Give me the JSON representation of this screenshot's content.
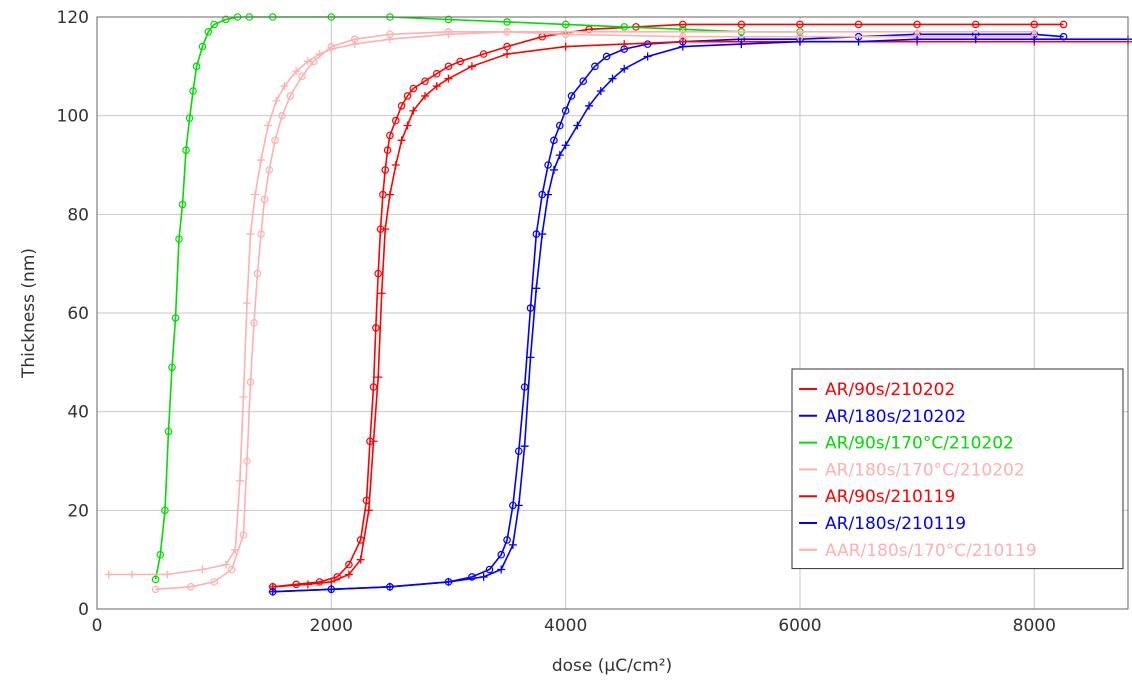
{
  "chart_data": {
    "type": "line",
    "title": "",
    "xlabel": "dose (µC/cm²)",
    "ylabel": "Thickness (nm)",
    "xlim": [
      0,
      8800
    ],
    "ylim": [
      0,
      120
    ],
    "xticks": [
      0,
      2000,
      4000,
      6000,
      8000
    ],
    "yticks": [
      0,
      20,
      40,
      60,
      80,
      100,
      120
    ],
    "grid": true,
    "legend_position": "bottom-right",
    "series": [
      {
        "name": "AR/90s/210202",
        "color": "#ff0000",
        "marker": "circle",
        "x": [
          1500,
          1700,
          1900,
          2050,
          2150,
          2250,
          2300,
          2330,
          2360,
          2380,
          2400,
          2420,
          2440,
          2460,
          2480,
          2500,
          2550,
          2600,
          2650,
          2700,
          2800,
          2900,
          3000,
          3100,
          3300,
          3500,
          3800,
          4200,
          4600,
          5000,
          5500,
          6000,
          6500,
          7000,
          7500,
          8000,
          8250
        ],
        "y": [
          4.5,
          5,
          5.5,
          6.5,
          9,
          14,
          22,
          34,
          45,
          57,
          68,
          77,
          84,
          89,
          93,
          96,
          99,
          102,
          104,
          105.5,
          107,
          108.5,
          110,
          111,
          112.5,
          114,
          116,
          117.5,
          118,
          118.5,
          118.5,
          118.5,
          118.5,
          118.5,
          118.5,
          118.5,
          118.5
        ]
      },
      {
        "name": "AR/180s/210202",
        "color": "#0000ff",
        "marker": "circle",
        "x": [
          1500,
          2000,
          2500,
          3000,
          3200,
          3350,
          3450,
          3500,
          3550,
          3600,
          3650,
          3700,
          3750,
          3800,
          3850,
          3900,
          3950,
          4000,
          4050,
          4150,
          4250,
          4350,
          4500,
          4700,
          5000,
          5500,
          6000,
          6500,
          7000,
          7500,
          8000,
          8250
        ],
        "y": [
          3.5,
          4,
          4.5,
          5.5,
          6.5,
          8,
          11,
          14,
          21,
          32,
          45,
          61,
          76,
          84,
          90,
          95,
          98,
          101,
          104,
          107,
          110,
          112,
          113.5,
          114.5,
          115,
          115.5,
          115.5,
          116,
          116.5,
          116.5,
          116.5,
          116
        ]
      },
      {
        "name": "AR/90s/170°C/210202",
        "color": "#00dd00",
        "marker": "circle",
        "x": [
          500,
          540,
          580,
          610,
          640,
          670,
          700,
          730,
          760,
          790,
          820,
          850,
          900,
          950,
          1000,
          1100,
          1200,
          1300,
          1500,
          2000,
          2500,
          3000,
          3500,
          4000,
          4500,
          5000,
          5500,
          6000
        ],
        "y": [
          6,
          11,
          20,
          36,
          49,
          59,
          75,
          82,
          93,
          99.5,
          105,
          110,
          114,
          117,
          118.5,
          119.5,
          120,
          120,
          120,
          120,
          120,
          119.5,
          119,
          118.5,
          118,
          117.5,
          117,
          117
        ]
      },
      {
        "name": "AR/180s/170°C/210202",
        "color": "#ffb0b0",
        "marker": "circle",
        "x": [
          500,
          800,
          1000,
          1150,
          1250,
          1280,
          1310,
          1340,
          1370,
          1400,
          1430,
          1470,
          1520,
          1580,
          1650,
          1750,
          1850,
          2000,
          2200,
          2500,
          3000,
          3500,
          4000,
          5000,
          6000,
          7000,
          8000
        ],
        "y": [
          4,
          4.5,
          5.5,
          8,
          15,
          30,
          46,
          58,
          68,
          76,
          83,
          89,
          95,
          100,
          104,
          108,
          111,
          114,
          115.5,
          116.5,
          117,
          117,
          116.5,
          116,
          116,
          116,
          116
        ]
      },
      {
        "name": "AR/90s/210119",
        "color": "#ff0000",
        "marker": "plus",
        "x": [
          1500,
          1800,
          2000,
          2150,
          2250,
          2320,
          2360,
          2400,
          2430,
          2460,
          2500,
          2550,
          2600,
          2650,
          2700,
          2800,
          2900,
          3000,
          3200,
          3500,
          4000,
          4500,
          5000,
          6000,
          7000,
          8000,
          8800
        ],
        "y": [
          4.5,
          5,
          5.5,
          7,
          10,
          20,
          34,
          47,
          64,
          77,
          84,
          90,
          95,
          98,
          101,
          104,
          106,
          107.5,
          110,
          112.5,
          114,
          114.5,
          115,
          115,
          115,
          115,
          115
        ]
      },
      {
        "name": "AR/180s/210119",
        "color": "#0000ff",
        "marker": "plus",
        "x": [
          1500,
          2000,
          2500,
          3000,
          3300,
          3450,
          3550,
          3600,
          3650,
          3700,
          3750,
          3800,
          3850,
          3900,
          3950,
          4000,
          4100,
          4200,
          4300,
          4400,
          4500,
          4700,
          5000,
          5500,
          6000,
          6500,
          7000,
          7500,
          8000,
          8800
        ],
        "y": [
          3.5,
          4,
          4.5,
          5.5,
          6.5,
          8,
          13,
          21,
          33,
          51,
          65,
          76,
          84,
          89,
          92,
          94,
          98,
          102,
          105,
          107.5,
          109.5,
          112,
          114,
          114.5,
          115,
          115,
          115.5,
          115.5,
          115.5,
          115.5
        ]
      },
      {
        "name": "AAR/180s/170°C/210119",
        "color": "#ffb0b0",
        "marker": "plus",
        "x": [
          100,
          300,
          600,
          900,
          1100,
          1180,
          1220,
          1250,
          1280,
          1310,
          1350,
          1400,
          1460,
          1530,
          1600,
          1700,
          1800,
          1900,
          2000,
          2200,
          2500,
          3000,
          3500,
          4000,
          5000,
          6000,
          7000,
          8000
        ],
        "y": [
          7,
          7,
          7,
          8,
          9,
          12,
          26,
          43,
          62,
          76,
          84,
          91,
          98,
          103,
          106,
          109,
          111,
          112.5,
          113.5,
          114.5,
          115.5,
          116.5,
          117,
          117,
          117,
          117,
          117,
          117
        ]
      }
    ]
  }
}
